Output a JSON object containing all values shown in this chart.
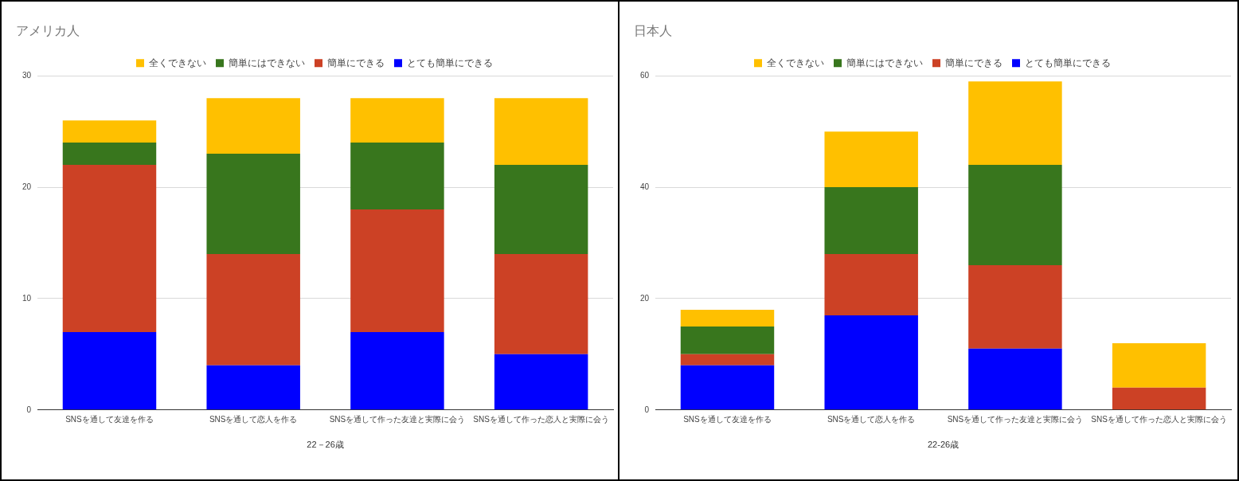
{
  "chart_data": [
    {
      "type": "bar",
      "title": "アメリカ人",
      "xlabel": "22－26歳",
      "stacked": true,
      "legend": "top",
      "grid": "y",
      "categories": [
        "SNSを通して友達を作る",
        "SNSを通して恋人を作る",
        "SNSを通して作った友達と実際に会う",
        "SNSを通して作った恋人と実際に会う"
      ],
      "ylim": [
        0,
        30
      ],
      "yticks": [
        0,
        10,
        20,
        30
      ],
      "series": [
        {
          "name": "とても簡単にできる",
          "color": "#0000ff",
          "values": [
            7,
            4,
            7,
            5
          ]
        },
        {
          "name": "簡単にできる",
          "color": "#cc4125",
          "values": [
            15,
            10,
            11,
            9
          ]
        },
        {
          "name": "簡単にはできない",
          "color": "#38761d",
          "values": [
            2,
            9,
            6,
            8
          ]
        },
        {
          "name": "全くできない",
          "color": "#ffc000",
          "values": [
            2,
            5,
            4,
            6
          ]
        }
      ]
    },
    {
      "type": "bar",
      "title": "日本人",
      "xlabel": "22-26歳",
      "stacked": true,
      "legend": "top",
      "grid": "y",
      "categories": [
        "SNSを通して友達を作る",
        "SNSを通して恋人を作る",
        "SNSを通して作った友達と実際に会う",
        "SNSを通して作った恋人と実際に会う"
      ],
      "ylim": [
        0,
        60
      ],
      "yticks": [
        0,
        20,
        40,
        60
      ],
      "series": [
        {
          "name": "とても簡単にできる",
          "color": "#0000ff",
          "values": [
            8,
            17,
            11,
            0
          ]
        },
        {
          "name": "簡単にできる",
          "color": "#cc4125",
          "values": [
            2,
            11,
            15,
            4
          ]
        },
        {
          "name": "簡単にはできない",
          "color": "#38761d",
          "values": [
            5,
            12,
            18,
            0
          ]
        },
        {
          "name": "全くできない",
          "color": "#ffc000",
          "values": [
            3,
            10,
            15,
            8
          ]
        }
      ]
    }
  ]
}
